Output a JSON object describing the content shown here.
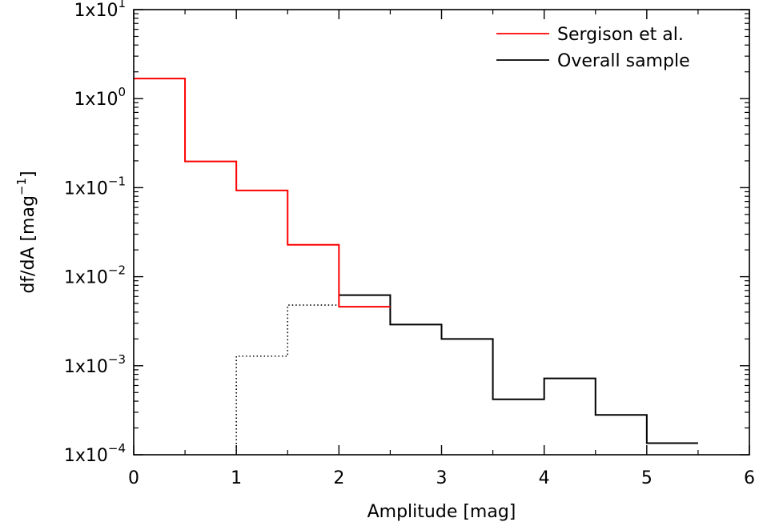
{
  "chart_data": {
    "type": "line",
    "step": "histogram",
    "xlabel": "Amplitude [mag]",
    "ylabel": "df/dA [mag⁻¹]",
    "xlim": [
      0,
      6
    ],
    "ylim": [
      0.0001,
      10
    ],
    "yscale": "log",
    "legend_position": "top-right",
    "x_ticks": [
      {
        "value": 0,
        "label": "0"
      },
      {
        "value": 1,
        "label": "1"
      },
      {
        "value": 2,
        "label": "2"
      },
      {
        "value": 3,
        "label": "3"
      },
      {
        "value": 4,
        "label": "4"
      },
      {
        "value": 5,
        "label": "5"
      },
      {
        "value": 6,
        "label": "6"
      }
    ],
    "y_ticks": [
      {
        "value": 0.0001,
        "mantissa": "1x10",
        "exp": "−4"
      },
      {
        "value": 0.001,
        "mantissa": "1x10",
        "exp": "−3"
      },
      {
        "value": 0.01,
        "mantissa": "1x10",
        "exp": "−2"
      },
      {
        "value": 0.1,
        "mantissa": "1x10",
        "exp": "−1"
      },
      {
        "value": 1,
        "mantissa": "1x10",
        "exp": "0"
      },
      {
        "value": 10,
        "mantissa": "1x10",
        "exp": "1"
      }
    ],
    "series": [
      {
        "name": "Sergison et al.",
        "color": "#ff0000",
        "style": "solid",
        "bin_edges": [
          0,
          0.5,
          1,
          1.5,
          2,
          2.5
        ],
        "values": [
          1.68,
          0.197,
          0.093,
          0.0228,
          0.0046
        ]
      },
      {
        "name": "Overall sample",
        "color": "#000000",
        "style": "solid",
        "bin_edges": [
          2,
          2.5,
          3,
          3.5,
          4,
          4.5,
          5,
          5.5
        ],
        "values": [
          0.0062,
          0.0029,
          0.002,
          0.00042,
          0.00072,
          0.00028,
          0.000135
        ]
      },
      {
        "color": "#000000",
        "style": "dotted",
        "bin_edges": [
          1,
          1.5,
          2
        ],
        "values": [
          0.00128,
          0.0048
        ]
      }
    ]
  }
}
